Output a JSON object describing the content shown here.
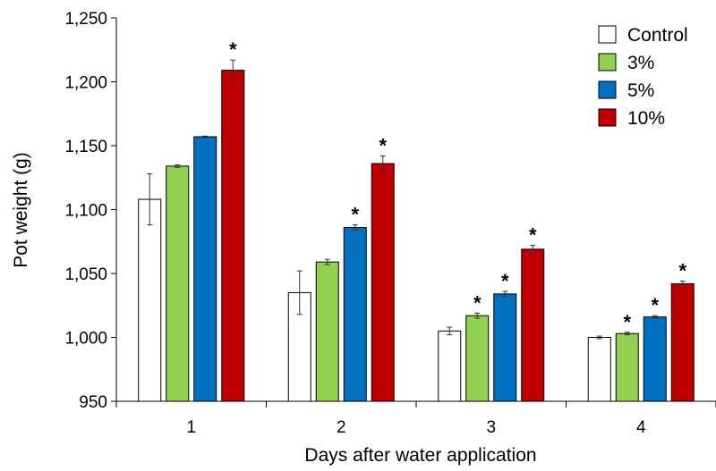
{
  "chart_data": {
    "type": "bar",
    "categories": [
      "1",
      "2",
      "3",
      "4"
    ],
    "xlabel": "Days after water application",
    "ylabel": "Pot weight (g)",
    "ylim": [
      950,
      1250
    ],
    "yticks": [
      950,
      1000,
      1050,
      1100,
      1150,
      1200,
      1250
    ],
    "ytick_labels": [
      "950",
      "1,000",
      "1,050",
      "1,100",
      "1,150",
      "1,200",
      "1,250"
    ],
    "grid": false,
    "legend_position": "top-right",
    "significance_marker": "*",
    "series": [
      {
        "name": "Control",
        "color": "#ffffff",
        "values": [
          1108,
          1035,
          1005,
          1000
        ],
        "errors": [
          20,
          17,
          3,
          1
        ],
        "significant": [
          false,
          false,
          false,
          false
        ]
      },
      {
        "name": "3%",
        "color": "#92d050",
        "values": [
          1134,
          1059,
          1017,
          1003
        ],
        "errors": [
          1,
          2,
          2,
          1
        ],
        "significant": [
          false,
          false,
          true,
          true
        ]
      },
      {
        "name": "5%",
        "color": "#0070c0",
        "values": [
          1157,
          1086,
          1034,
          1016
        ],
        "errors": [
          0.5,
          2,
          2,
          1
        ],
        "significant": [
          false,
          true,
          true,
          true
        ]
      },
      {
        "name": "10%",
        "color": "#c00000",
        "values": [
          1209,
          1136,
          1069,
          1042
        ],
        "errors": [
          8,
          6,
          3,
          2
        ],
        "significant": [
          true,
          true,
          true,
          true
        ]
      }
    ]
  }
}
